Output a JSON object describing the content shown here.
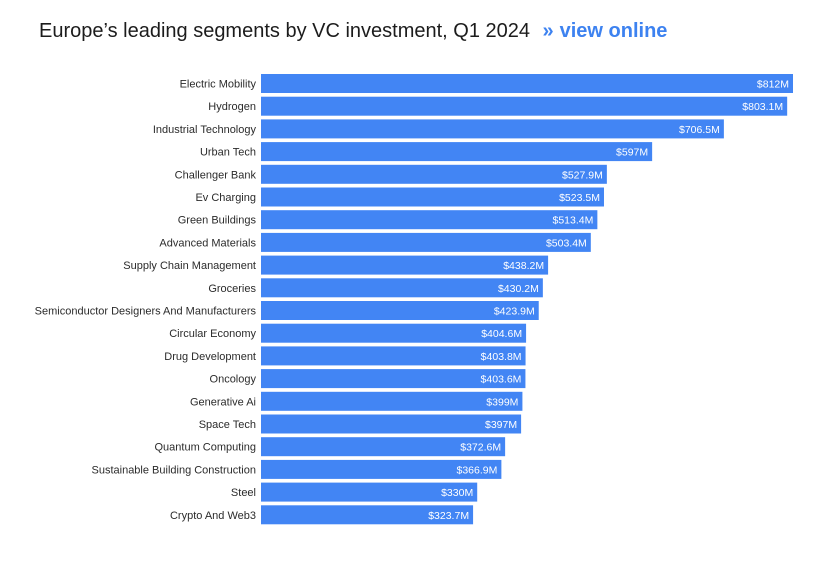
{
  "header": {
    "title": "Europe’s leading segments by VC investment, Q1 2024",
    "link_chevron": "»",
    "link_label": "view online"
  },
  "colors": {
    "bar": "#4285f4",
    "link": "#3d82f0"
  },
  "chart_data": {
    "type": "bar",
    "orientation": "horizontal",
    "title": "Europe’s leading segments by VC investment, Q1 2024",
    "xlabel": "",
    "ylabel": "",
    "unit_prefix": "$",
    "unit_suffix": "M",
    "grid": false,
    "legend": "none",
    "xlim": [
      0,
      820
    ],
    "categories": [
      "Electric Mobility",
      "Hydrogen",
      "Industrial Technology",
      "Urban Tech",
      "Challenger Bank",
      "Ev Charging",
      "Green Buildings",
      "Advanced Materials",
      "Supply Chain Management",
      "Groceries",
      "Semiconductor Designers And Manufacturers",
      "Circular Economy",
      "Drug Development",
      "Oncology",
      "Generative Ai",
      "Space Tech",
      "Quantum Computing",
      "Sustainable Building Construction",
      "Steel",
      "Crypto And Web3"
    ],
    "values": [
      812,
      803.1,
      706.5,
      597,
      527.9,
      523.5,
      513.4,
      503.4,
      438.2,
      430.2,
      423.9,
      404.6,
      403.8,
      403.6,
      399,
      397,
      372.6,
      366.9,
      330,
      323.7
    ],
    "value_labels": [
      "$812M",
      "$803.1M",
      "$706.5M",
      "$597M",
      "$527.9M",
      "$523.5M",
      "$513.4M",
      "$503.4M",
      "$438.2M",
      "$430.2M",
      "$423.9M",
      "$404.6M",
      "$403.8M",
      "$403.6M",
      "$399M",
      "$397M",
      "$372.6M",
      "$366.9M",
      "$330M",
      "$323.7M"
    ]
  }
}
